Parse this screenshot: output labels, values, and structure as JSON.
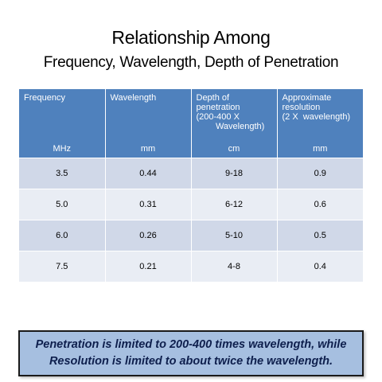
{
  "title": {
    "line1": "Relationship Among",
    "line2": "Frequency, Wavelength, Depth of Penetration"
  },
  "table": {
    "headers": [
      {
        "label": "Frequency",
        "unit": "MHz"
      },
      {
        "label": "Wavelength",
        "unit": "mm"
      },
      {
        "label": "Depth of\npenetration\n(200-400 X\n        Wavelength)",
        "unit": "cm"
      },
      {
        "label": "Approximate\nresolution\n(2 X  wavelength)",
        "unit": "mm"
      }
    ],
    "rows": [
      [
        "3.5",
        "0.44",
        "9-18",
        "0.9"
      ],
      [
        "5.0",
        "0.31",
        "6-12",
        "0.6"
      ],
      [
        "6.0",
        "0.26",
        "5-10",
        "0.5"
      ],
      [
        "7.5",
        "0.21",
        "4-8",
        "0.4"
      ]
    ]
  },
  "callout": {
    "line1": "Penetration is limited to 200-400 times wavelength, while",
    "line2": "Resolution is limited to about twice the wavelength."
  },
  "colors": {
    "header_bg": "#4f81bd",
    "row_dark": "#d0d8e8",
    "row_light": "#e9edf4",
    "callout_bg": "#a6bfe0",
    "callout_text": "#0e1f4d"
  }
}
